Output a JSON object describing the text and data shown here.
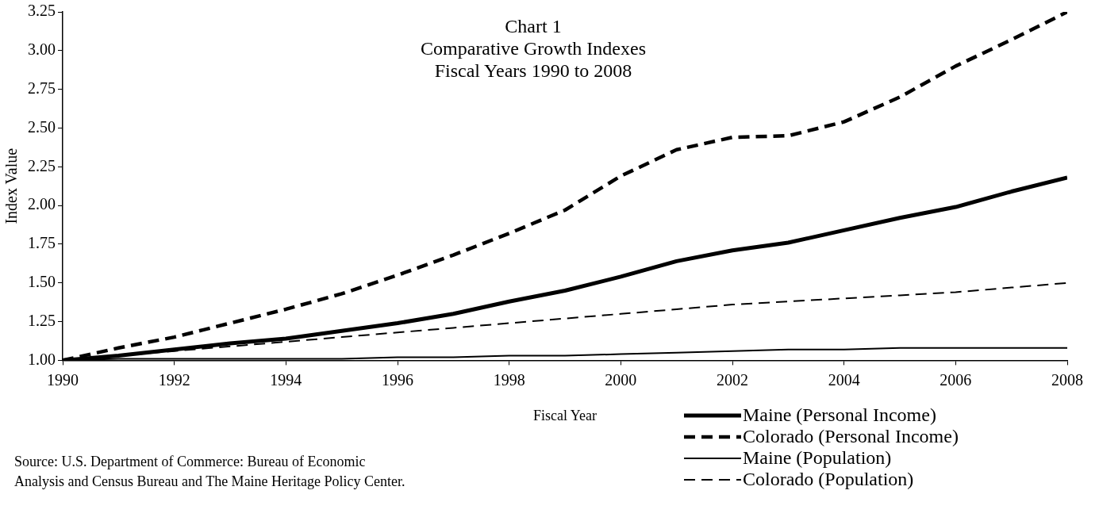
{
  "chart_data": {
    "type": "line",
    "title": "Chart 1",
    "subtitle": "Comparative Growth Indexes\nFiscal Years 1990 to 2008",
    "xlabel": "Fiscal Year",
    "ylabel": "Index Value",
    "x": [
      1990,
      1991,
      1992,
      1993,
      1994,
      1995,
      1996,
      1997,
      1998,
      1999,
      2000,
      2001,
      2002,
      2003,
      2004,
      2005,
      2006,
      2007,
      2008
    ],
    "xlim": [
      1990,
      2008
    ],
    "xticks": [
      1990,
      1992,
      1994,
      1996,
      1998,
      2000,
      2002,
      2004,
      2006,
      2008
    ],
    "ylim": [
      1,
      3.25
    ],
    "yticks": [
      {
        "value": 1,
        "label": "1.00"
      },
      {
        "value": 1.25,
        "label": "1.25"
      },
      {
        "value": 1.5,
        "label": "1.50"
      },
      {
        "value": 1.75,
        "label": "1.75"
      },
      {
        "value": 2,
        "label": "2.00"
      },
      {
        "value": 2.25,
        "label": "2.25"
      },
      {
        "value": 2.5,
        "label": "2.50"
      },
      {
        "value": 2.75,
        "label": "2.75"
      },
      {
        "value": 3,
        "label": "3.00"
      },
      {
        "value": 3.25,
        "label": "3.25"
      }
    ],
    "series": [
      {
        "name": "Maine (Personal Income)",
        "color": "#000000",
        "line_style": "solid",
        "values": [
          1.0,
          1.03,
          1.07,
          1.11,
          1.14,
          1.19,
          1.24,
          1.3,
          1.38,
          1.45,
          1.54,
          1.64,
          1.71,
          1.76,
          1.84,
          1.92,
          1.99,
          2.09,
          2.18
        ]
      },
      {
        "name": "Colorado (Personal Income)",
        "color": "#000000",
        "line_style": "dashed",
        "values": [
          1.0,
          1.08,
          1.15,
          1.24,
          1.33,
          1.43,
          1.55,
          1.68,
          1.82,
          1.97,
          2.19,
          2.36,
          2.44,
          2.45,
          2.54,
          2.7,
          2.9,
          3.07,
          3.25
        ]
      },
      {
        "name": "Maine (Population)",
        "color": "#000000",
        "line_style": "solid",
        "values": [
          1.0,
          1.01,
          1.01,
          1.01,
          1.01,
          1.01,
          1.02,
          1.02,
          1.03,
          1.03,
          1.04,
          1.05,
          1.06,
          1.07,
          1.07,
          1.08,
          1.08,
          1.08,
          1.08
        ]
      },
      {
        "name": "Colorado (Population)",
        "color": "#000000",
        "line_style": "dashed",
        "values": [
          1.0,
          1.03,
          1.06,
          1.09,
          1.12,
          1.15,
          1.18,
          1.21,
          1.24,
          1.27,
          1.3,
          1.33,
          1.36,
          1.38,
          1.4,
          1.42,
          1.44,
          1.47,
          1.5
        ]
      }
    ],
    "marker": "none",
    "grid": false,
    "legend": "bottom right",
    "annotations": [
      "Source: U.S. Department of Commerce: Bureau of Economic Analysis and Census Bureau and The Maine Heritage Policy Center."
    ]
  }
}
